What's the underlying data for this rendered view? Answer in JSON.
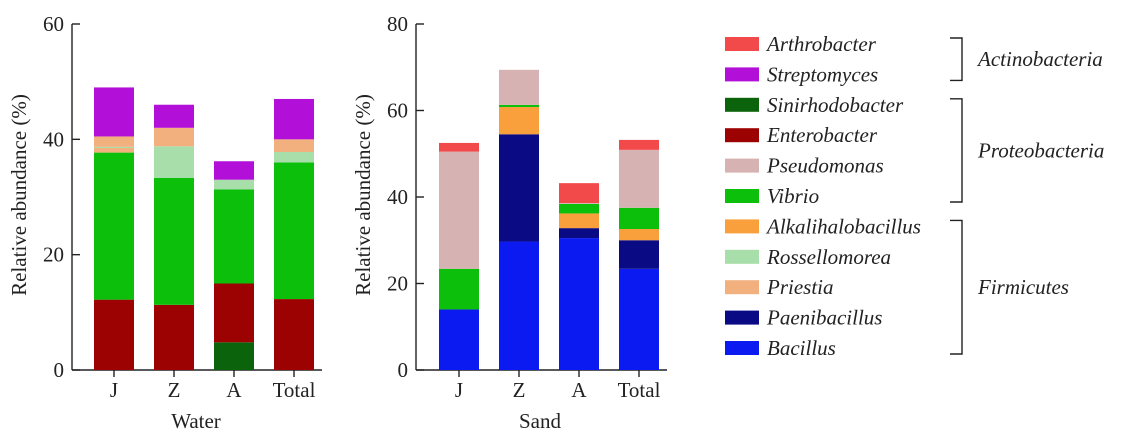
{
  "chart_data": [
    {
      "type": "bar",
      "stacked": true,
      "xlabel": "Water",
      "ylabel": "Relative abundance (%)",
      "ylim": [
        0,
        60
      ],
      "yticks": [
        0,
        20,
        40,
        60
      ],
      "categories": [
        "J",
        "Z",
        "A",
        "Total"
      ],
      "series": [
        {
          "name": "Bacillus",
          "values": [
            0,
            0,
            0,
            0
          ]
        },
        {
          "name": "Paenibacillus",
          "values": [
            0,
            0,
            0,
            0
          ]
        },
        {
          "name": "Priestia",
          "values": [
            0,
            0,
            0,
            0
          ]
        },
        {
          "name": "Rossellomorea",
          "values": [
            0,
            0,
            0,
            0
          ]
        },
        {
          "name": "Alkalihalobacillus",
          "values": [
            0,
            0,
            0,
            0
          ]
        },
        {
          "name": "Vibrio",
          "values": [
            0,
            0,
            0,
            0
          ]
        },
        {
          "name": "Pseudomonas",
          "values": [
            0,
            0,
            0,
            0
          ]
        },
        {
          "name": "Enterobacter",
          "values": [
            0,
            0,
            0,
            0
          ]
        },
        {
          "name": "Sinirhodobacter",
          "values": [
            0,
            0,
            0,
            0
          ]
        },
        {
          "name": "Streptomyces",
          "values": [
            0,
            0,
            0,
            0
          ]
        },
        {
          "name": "Arthrobacter",
          "values": [
            0,
            0,
            0,
            0
          ]
        }
      ],
      "stacks": [
        [
          [
            "Enterobacter",
            12.2
          ],
          [
            "Vibrio",
            25.5
          ],
          [
            "Priestia",
            0.8
          ],
          [
            "Rossellomorea",
            0.2
          ],
          [
            "Priestia",
            1.8
          ],
          [
            "Streptomyces",
            8.5
          ]
        ],
        [
          [
            "Enterobacter",
            11.3
          ],
          [
            "Vibrio",
            22.0
          ],
          [
            "Rossellomorea",
            5.5
          ],
          [
            "Priestia",
            3.2
          ],
          [
            "Streptomyces",
            4.0
          ]
        ],
        [
          [
            "Sinirhodobacter",
            4.8
          ],
          [
            "Enterobacter",
            10.2
          ],
          [
            "Vibrio",
            16.3
          ],
          [
            "Rossellomorea",
            1.7
          ],
          [
            "Streptomyces",
            3.2
          ]
        ],
        [
          [
            "Enterobacter",
            12.3
          ],
          [
            "Vibrio",
            23.7
          ],
          [
            "Rossellomorea",
            1.8
          ],
          [
            "Priestia",
            2.2
          ],
          [
            "Streptomyces",
            7.0
          ]
        ]
      ]
    },
    {
      "type": "bar",
      "stacked": true,
      "xlabel": "Sand",
      "ylabel": "Relative abundance (%)",
      "ylim": [
        0,
        80
      ],
      "yticks": [
        0,
        20,
        40,
        60,
        80
      ],
      "categories": [
        "J",
        "Z",
        "A",
        "Total"
      ],
      "series": [
        {
          "name": "Bacillus",
          "values": [
            14.0,
            29.7,
            30.5,
            23.4
          ]
        },
        {
          "name": "Paenibacillus",
          "values": [
            0.0,
            24.8,
            2.3,
            6.6
          ]
        },
        {
          "name": "Alkalihalobacillus",
          "values": [
            0.0,
            6.3,
            3.4,
            2.6
          ]
        },
        {
          "name": "Vibrio",
          "values": [
            9.4,
            0.5,
            2.2,
            4.9
          ]
        },
        {
          "name": "Pseudomonas",
          "values": [
            27.1,
            8.1,
            0.2,
            13.4
          ]
        },
        {
          "name": "Arthrobacter",
          "values": [
            2.0,
            0.0,
            4.6,
            2.3
          ]
        }
      ],
      "stacks": [
        [
          [
            "Bacillus",
            14.0
          ],
          [
            "Vibrio",
            9.4
          ],
          [
            "Pseudomonas",
            27.1
          ],
          [
            "Arthrobacter",
            2.0
          ]
        ],
        [
          [
            "Bacillus",
            29.7
          ],
          [
            "Paenibacillus",
            24.8
          ],
          [
            "Alkalihalobacillus",
            6.3
          ],
          [
            "Vibrio",
            0.5
          ],
          [
            "Pseudomonas",
            8.1
          ]
        ],
        [
          [
            "Bacillus",
            30.5
          ],
          [
            "Paenibacillus",
            2.3
          ],
          [
            "Alkalihalobacillus",
            3.4
          ],
          [
            "Vibrio",
            2.2
          ],
          [
            "Pseudomonas",
            0.2
          ],
          [
            "Arthrobacter",
            4.6
          ]
        ],
        [
          [
            "Bacillus",
            23.4
          ],
          [
            "Paenibacillus",
            6.6
          ],
          [
            "Alkalihalobacillus",
            2.6
          ],
          [
            "Vibrio",
            4.9
          ],
          [
            "Pseudomonas",
            13.4
          ],
          [
            "Arthrobacter",
            2.3
          ]
        ]
      ]
    }
  ],
  "legend": {
    "items": [
      {
        "name": "Arthrobacter",
        "color": "#f24a4a"
      },
      {
        "name": "Streptomyces",
        "color": "#b20fd8"
      },
      {
        "name": "Sinirhodobacter",
        "color": "#0b640b"
      },
      {
        "name": "Enterobacter",
        "color": "#9c0202"
      },
      {
        "name": "Pseudomonas",
        "color": "#d7b2b2"
      },
      {
        "name": "Vibrio",
        "color": "#0bbf0b"
      },
      {
        "name": "Alkalihalobacillus",
        "color": "#f9a03d"
      },
      {
        "name": "Rossellomorea",
        "color": "#a8deaa"
      },
      {
        "name": "Priestia",
        "color": "#f2b07e"
      },
      {
        "name": "Paenibacillus",
        "color": "#0a0a84"
      },
      {
        "name": "Bacillus",
        "color": "#0a1af0"
      }
    ],
    "groups": [
      {
        "name": "Actinobacteria"
      },
      {
        "name": "Proteobacteria"
      },
      {
        "name": "Firmicutes"
      }
    ]
  }
}
